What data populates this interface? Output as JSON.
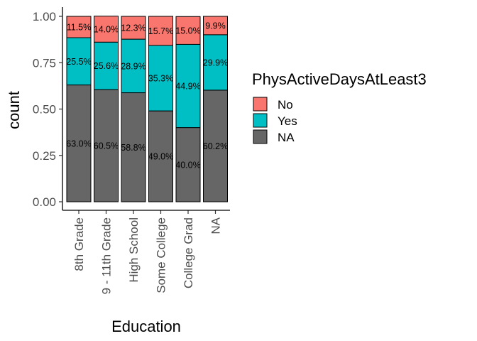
{
  "chart_data": {
    "type": "bar",
    "stacked": "fill",
    "xlabel": "Education",
    "ylabel": "count",
    "ylim": [
      0,
      1
    ],
    "y_ticks": [
      "0.00",
      "0.25",
      "0.50",
      "0.75",
      "1.00"
    ],
    "categories": [
      "8th Grade",
      "9 - 11th Grade",
      "High School",
      "Some College",
      "College Grad",
      "NA"
    ],
    "series": [
      {
        "name": "No",
        "color": "#F8766D",
        "values": [
          0.115,
          0.14,
          0.123,
          0.157,
          0.15,
          0.099
        ],
        "labels": [
          "11.5%",
          "14.0%",
          "12.3%",
          "15.7%",
          "15.0%",
          "9.9%"
        ]
      },
      {
        "name": "Yes",
        "color": "#00BFC4",
        "values": [
          0.255,
          0.256,
          0.289,
          0.353,
          0.449,
          0.299
        ],
        "labels": [
          "25.5%",
          "25.6%",
          "28.9%",
          "35.3%",
          "44.9%",
          "29.9%"
        ]
      },
      {
        "name": "NA",
        "color": "#666666",
        "values": [
          0.63,
          0.605,
          0.588,
          0.49,
          0.4,
          0.602
        ],
        "labels": [
          "63.0%",
          "60.5%",
          "58.8%",
          "49.0%",
          "40.0%",
          "60.2%"
        ]
      }
    ],
    "legend": {
      "title": "PhysActiveDaysAtLeast3",
      "position": "right"
    },
    "grid": false
  }
}
